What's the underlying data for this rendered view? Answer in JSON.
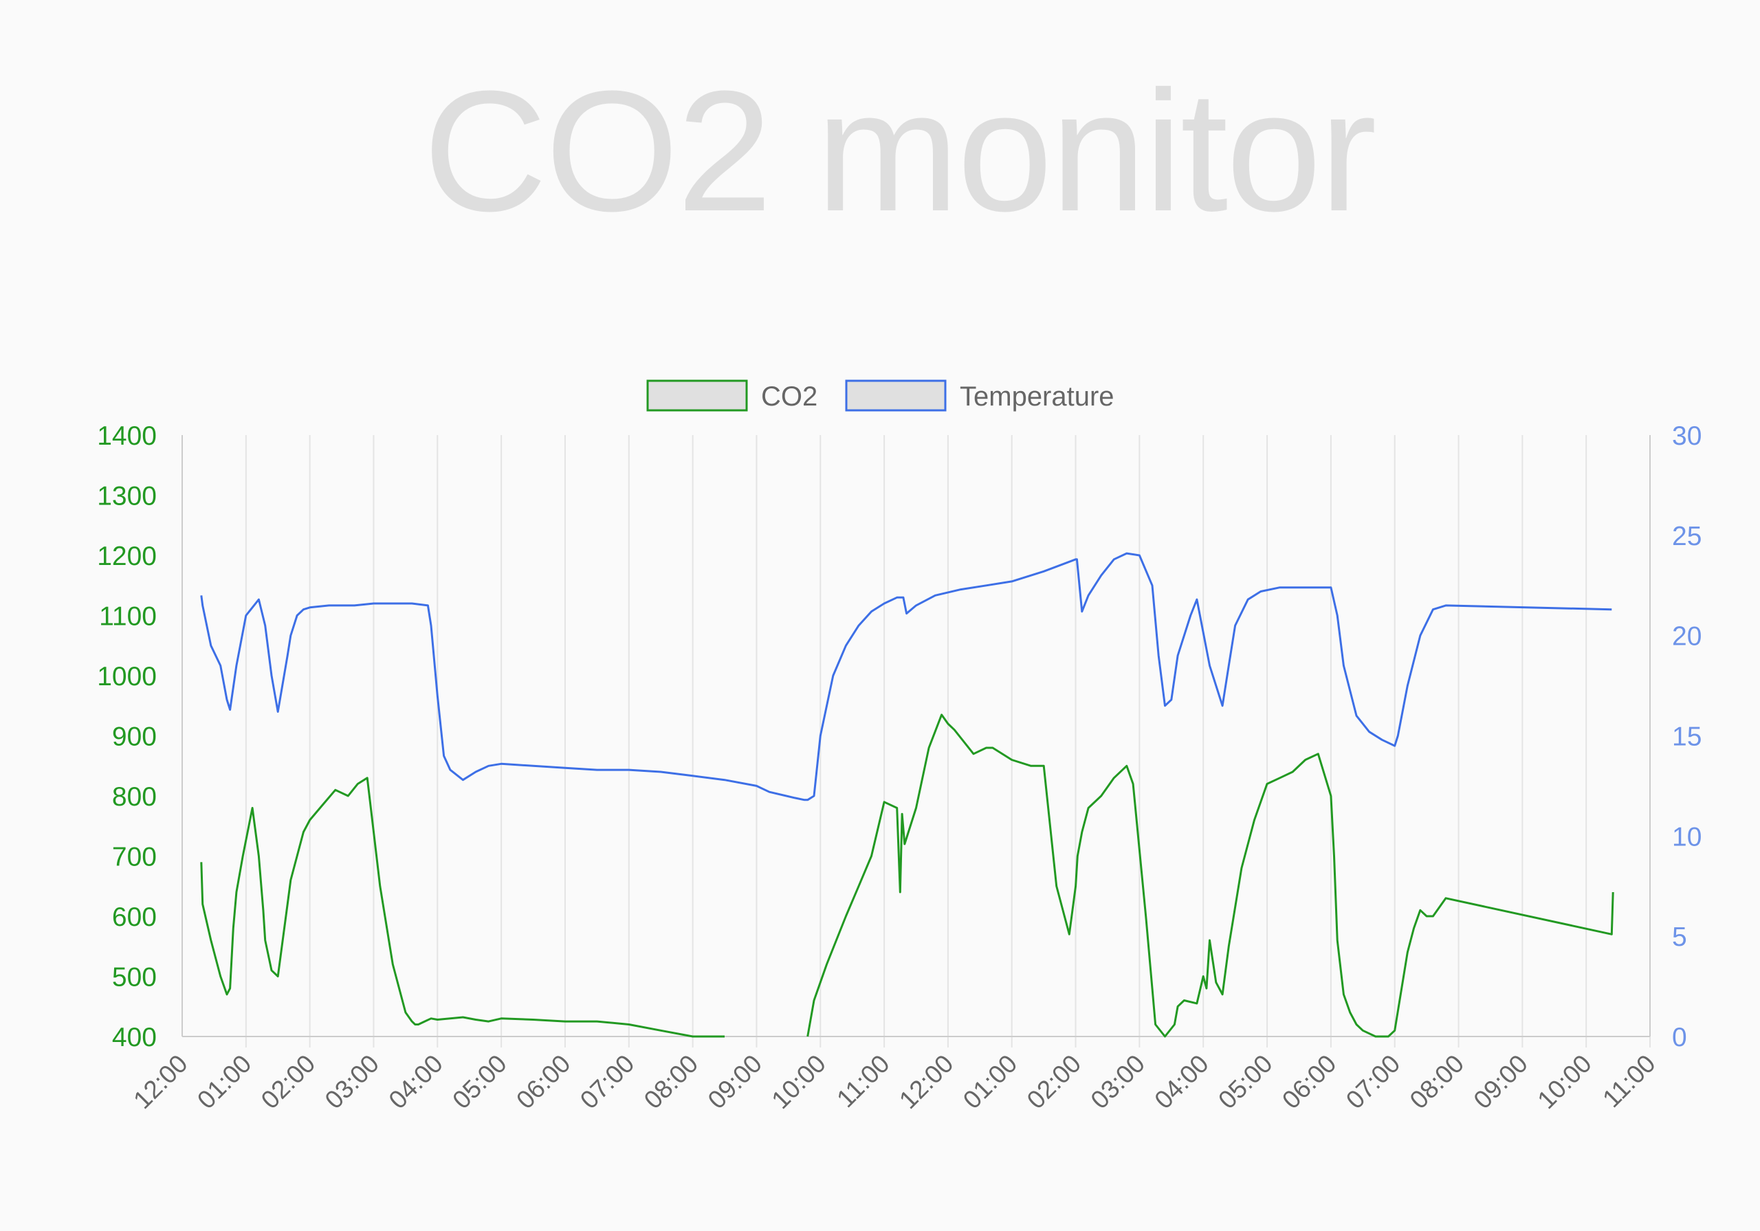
{
  "title": "CO2 monitor",
  "colors": {
    "background": "#fafafa",
    "title": "#dedede",
    "co2": "#229922",
    "temperature": "#3d6fe6",
    "temperature_ticks": "#6d93e8",
    "grid": "#e4e4e4",
    "axis": "#cccccc",
    "legend_fill": "#e0e0e0"
  },
  "chart_data": {
    "type": "line",
    "legend": {
      "position": "top-center",
      "entries": [
        "CO2",
        "Temperature"
      ]
    },
    "grid": true,
    "x_axis": {
      "tick_labels": [
        "12:00",
        "01:00",
        "02:00",
        "03:00",
        "04:00",
        "05:00",
        "06:00",
        "07:00",
        "08:00",
        "09:00",
        "10:00",
        "11:00",
        "12:00",
        "01:00",
        "02:00",
        "03:00",
        "04:00",
        "05:00",
        "06:00",
        "07:00",
        "08:00",
        "09:00",
        "10:00",
        "11:00"
      ],
      "range_hours": [
        0,
        23
      ],
      "note": "x values are hours after the first 12:00 tick"
    },
    "y_left": {
      "series": "CO2",
      "ylim": [
        400,
        1400
      ],
      "ticks": [
        400,
        500,
        600,
        700,
        800,
        900,
        1000,
        1100,
        1200,
        1300,
        1400
      ]
    },
    "y_right": {
      "series": "Temperature",
      "ylim": [
        0,
        30
      ],
      "ticks": [
        0,
        5,
        10,
        15,
        20,
        25,
        30
      ]
    },
    "series": [
      {
        "name": "CO2",
        "axis": "left",
        "x": [
          0.3,
          0.32,
          0.45,
          0.6,
          0.7,
          0.75,
          0.8,
          0.85,
          0.95,
          1.1,
          1.2,
          1.27,
          1.3,
          1.4,
          1.5,
          1.65,
          1.7,
          1.8,
          1.9,
          2.0,
          2.2,
          2.4,
          2.6,
          2.75,
          2.9,
          3.1,
          3.3,
          3.5,
          3.6,
          3.65,
          3.7,
          3.8,
          3.9,
          4.0,
          4.2,
          4.4,
          4.6,
          4.8,
          5.0,
          5.5,
          6.0,
          6.5,
          7.0,
          7.5,
          8.0,
          8.5,
          8.8,
          8.85,
          9.8,
          9.9,
          10.1,
          10.4,
          10.6,
          10.8,
          11.0,
          11.2,
          11.25,
          11.28,
          11.32,
          11.5,
          11.7,
          11.9,
          12.0,
          12.1,
          12.4,
          12.6,
          12.7,
          13.0,
          13.3,
          13.5,
          13.7,
          13.9,
          14.0,
          14.03,
          14.1,
          14.2,
          14.4,
          14.6,
          14.8,
          14.9,
          15.1,
          15.2,
          15.25,
          15.4,
          15.55,
          15.6,
          15.7,
          15.9,
          16.0,
          16.05,
          16.1,
          16.2,
          16.3,
          16.4,
          16.6,
          16.8,
          17.0,
          17.2,
          17.4,
          17.6,
          17.8,
          18.0,
          18.05,
          18.1,
          18.2,
          18.3,
          18.4,
          18.5,
          18.7,
          18.8,
          18.9,
          19.0,
          19.2,
          19.3,
          19.4,
          19.5,
          19.6,
          19.8,
          22.4,
          22.42
        ],
        "values": [
          690,
          620,
          560,
          500,
          470,
          480,
          580,
          640,
          700,
          780,
          700,
          610,
          560,
          510,
          500,
          620,
          660,
          700,
          740,
          760,
          785,
          810,
          800,
          820,
          830,
          650,
          520,
          440,
          425,
          420,
          420,
          425,
          430,
          428,
          430,
          432,
          428,
          425,
          430,
          428,
          425,
          425,
          420,
          410,
          400,
          400,
          null,
          null,
          400,
          460,
          520,
          600,
          650,
          700,
          790,
          780,
          640,
          770,
          720,
          780,
          880,
          935,
          920,
          910,
          870,
          880,
          880,
          860,
          850,
          850,
          650,
          570,
          650,
          700,
          740,
          780,
          800,
          830,
          850,
          820,
          600,
          480,
          420,
          400,
          420,
          450,
          460,
          455,
          500,
          480,
          560,
          490,
          470,
          550,
          680,
          760,
          820,
          830,
          840,
          860,
          870,
          800,
          700,
          560,
          470,
          440,
          420,
          410,
          400,
          400,
          400,
          410,
          540,
          580,
          610,
          600,
          600,
          630,
          570,
          640
        ],
        "_breaks_note": "null gap between 9:00 and 10:00"
      },
      {
        "name": "Temperature",
        "axis": "right",
        "x": [
          0.3,
          0.32,
          0.45,
          0.6,
          0.7,
          0.75,
          0.85,
          1.0,
          1.2,
          1.3,
          1.4,
          1.5,
          1.65,
          1.7,
          1.8,
          1.9,
          2.0,
          2.3,
          2.7,
          3.0,
          3.3,
          3.6,
          3.85,
          3.9,
          4.0,
          4.1,
          4.2,
          4.4,
          4.6,
          4.8,
          5.0,
          5.5,
          6.0,
          6.5,
          7.0,
          7.5,
          8.0,
          8.5,
          9.0,
          9.2,
          9.6,
          9.75,
          9.8,
          9.9,
          10.0,
          10.2,
          10.4,
          10.6,
          10.8,
          11.0,
          11.2,
          11.3,
          11.35,
          11.5,
          11.8,
          12.2,
          12.6,
          13.0,
          13.5,
          14.0,
          14.02,
          14.1,
          14.2,
          14.4,
          14.6,
          14.8,
          15.0,
          15.2,
          15.3,
          15.4,
          15.5,
          15.6,
          15.8,
          15.9,
          16.1,
          16.3,
          16.4,
          16.5,
          16.7,
          16.9,
          17.2,
          17.6,
          18.0,
          18.1,
          18.2,
          18.4,
          18.6,
          18.8,
          19.0,
          19.05,
          19.2,
          19.4,
          19.6,
          19.8,
          22.4
        ],
        "values": [
          22.0,
          21.5,
          19.5,
          18.5,
          16.8,
          16.3,
          18.5,
          21.0,
          21.8,
          20.5,
          18.0,
          16.2,
          19.0,
          20.0,
          21.0,
          21.3,
          21.4,
          21.5,
          21.5,
          21.6,
          21.6,
          21.6,
          21.5,
          20.5,
          17.0,
          14.0,
          13.3,
          12.8,
          13.2,
          13.5,
          13.6,
          13.5,
          13.4,
          13.3,
          13.3,
          13.2,
          13.0,
          12.8,
          12.5,
          12.2,
          11.9,
          11.8,
          11.8,
          12.0,
          15.0,
          18.0,
          19.5,
          20.5,
          21.2,
          21.6,
          21.9,
          21.9,
          21.1,
          21.5,
          22.0,
          22.3,
          22.5,
          22.7,
          23.2,
          23.8,
          23.8,
          21.2,
          22.0,
          23.0,
          23.8,
          24.1,
          24.0,
          22.5,
          19.0,
          16.5,
          16.8,
          19.0,
          21.0,
          21.8,
          18.5,
          16.5,
          18.5,
          20.5,
          21.8,
          22.2,
          22.4,
          22.4,
          22.4,
          21.0,
          18.5,
          16.0,
          15.2,
          14.8,
          14.5,
          15.0,
          17.5,
          20.0,
          21.3,
          21.5,
          21.3
        ]
      }
    ]
  }
}
